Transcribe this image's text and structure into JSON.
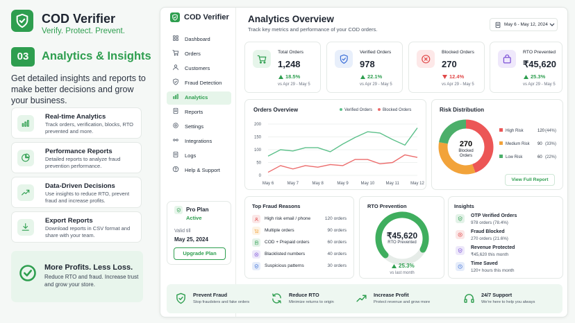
{
  "brand": {
    "name": "COD Verifier",
    "tagline": "Verify. Protect. Prevent."
  },
  "section": {
    "number": "03",
    "title": "Analytics & Insights",
    "description": "Get detailed insights and reports to make better decisions and grow your business."
  },
  "features": [
    {
      "title": "Real-time Analytics",
      "text": "Track orders, verification, blocks, RTO prevented and more."
    },
    {
      "title": "Performance Reports",
      "text": "Detailed reports to analyze fraud prevention performance."
    },
    {
      "title": "Data-Driven Decisions",
      "text": "Use insights to reduce RTO, prevent fraud and increase profits."
    },
    {
      "title": "Export Reports",
      "text": "Download reports in CSV format and share with your team."
    }
  ],
  "promo": {
    "title": "More Profits. Less Loss.",
    "text": "Reduce RTO and fraud. Increase trust and grow your store."
  },
  "sidebar": {
    "brand": "COD Verifier",
    "nav": [
      "Dashboard",
      "Orders",
      "Customers",
      "Fraud Detection",
      "Analytics",
      "Reports",
      "Settings",
      "Integrations",
      "Logs",
      "Help & Support"
    ],
    "active": 4,
    "plan": {
      "name": "Pro Plan",
      "status": "Active",
      "valid_label": "Valid till",
      "valid_date": "May 25, 2024",
      "button": "Upgrade Plan"
    }
  },
  "header": {
    "title": "Analytics Overview",
    "subtitle": "Track key metrics and performance of your COD orders.",
    "date_range": "May 6 - May 12, 2024"
  },
  "kpis": [
    {
      "label": "Total Orders",
      "value": "1,248",
      "change": "18.5%",
      "direction": "up",
      "compare": "vs Apr 29 - May 5",
      "color": "#2e9e4f"
    },
    {
      "label": "Verified Orders",
      "value": "978",
      "change": "22.1%",
      "direction": "up",
      "compare": "vs Apr 29 - May 5",
      "color": "#3b6fd8"
    },
    {
      "label": "Blocked Orders",
      "value": "270",
      "change": "12.4%",
      "direction": "down",
      "compare": "vs Apr 29 - May 5",
      "color": "#e04848"
    },
    {
      "label": "RTO Prevented",
      "value": "₹45,620",
      "change": "25.3%",
      "direction": "up",
      "compare": "vs Apr 29 - May 5",
      "color": "#7b4fd6"
    }
  ],
  "chart_data": [
    {
      "type": "line",
      "title": "Orders Overview",
      "categories": [
        "May 6",
        null,
        "May 7",
        null,
        "May 8",
        null,
        "May 9",
        null,
        "May 10",
        null,
        "May 11",
        null,
        "May 12"
      ],
      "series": [
        {
          "name": "Verified Orders",
          "color": "#5cc08a",
          "values": [
            75,
            100,
            95,
            108,
            108,
            92,
            122,
            148,
            170,
            165,
            140,
            118,
            185
          ]
        },
        {
          "name": "Blocked Orders",
          "color": "#ec6b6b",
          "values": [
            12,
            38,
            25,
            38,
            32,
            42,
            38,
            62,
            62,
            45,
            50,
            80,
            70
          ]
        }
      ],
      "ylim": [
        0,
        200
      ],
      "yticks": [
        0,
        50,
        100,
        150,
        200
      ],
      "grid": true
    },
    {
      "type": "pie",
      "title": "Risk Distribution",
      "categories": [
        "High Risk",
        "Medium Risk",
        "Low Risk"
      ],
      "values": [
        120,
        90,
        60
      ],
      "share_labels": [
        "(44%)",
        "(33%)",
        "(22%)"
      ],
      "colors": [
        "#ec5656",
        "#f2a33a",
        "#4caf6a"
      ],
      "center_value": "270",
      "center_label": "Blocked Orders",
      "button": "View Full Report"
    }
  ],
  "fraud_reasons": {
    "title": "Top Fraud Reasons",
    "items": [
      {
        "label": "High risk email / phone",
        "value": "120 orders",
        "color": "#e04848"
      },
      {
        "label": "Multiple orders",
        "value": "90 orders",
        "color": "#f2a33a"
      },
      {
        "label": "COD + Prepaid orders",
        "value": "60 orders",
        "color": "#2e9e4f"
      },
      {
        "label": "Blacklisted numbers",
        "value": "40 orders",
        "color": "#7b4fd6"
      },
      {
        "label": "Suspicious patterns",
        "value": "30 orders",
        "color": "#3b6fd8"
      }
    ]
  },
  "rto": {
    "title": "RTO Prevention",
    "value": "₹45,620",
    "label": "RTO Prevented",
    "change": "25.3%",
    "direction": "up",
    "compare": "vs last month"
  },
  "insights": {
    "title": "Insights",
    "items": [
      {
        "title": "OTP Verified Orders",
        "text": "978 orders (78.4%)",
        "color": "#2e9e4f"
      },
      {
        "title": "Fraud Blocked",
        "text": "270 orders (21.6%)",
        "color": "#e04848"
      },
      {
        "title": "Revenue Protected",
        "text": "₹45,620 this month",
        "color": "#7b4fd6"
      },
      {
        "title": "Time Saved",
        "text": "120+ hours this month",
        "color": "#3b6fd8"
      }
    ]
  },
  "benefits": [
    {
      "title": "Prevent Fraud",
      "text": "Stop fraudsters and fake orders"
    },
    {
      "title": "Reduce RTO",
      "text": "Minimize returns to origin"
    },
    {
      "title": "Increase Profit",
      "text": "Protect revenue and grow more"
    },
    {
      "title": "24/7 Support",
      "text": "We're here to help you always"
    }
  ]
}
